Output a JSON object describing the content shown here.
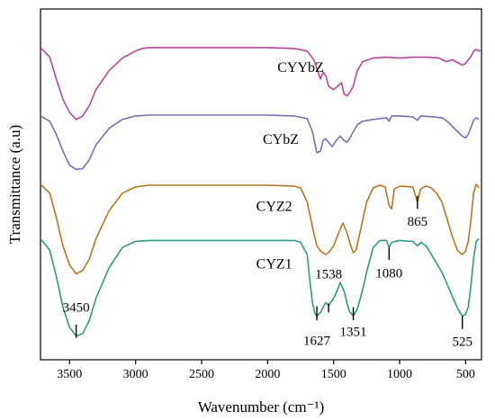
{
  "chart_data": {
    "type": "line",
    "xlabel": "Wavenumber (cm⁻¹)",
    "ylabel": "Transmittance (a.u)",
    "xlim": [
      3720,
      380
    ],
    "x_ticks": [
      3500,
      3000,
      2500,
      2000,
      1500,
      1000,
      500
    ],
    "x_tick_labels": [
      "3500",
      "3000",
      "2500",
      "2000",
      "1500",
      "1000",
      "500"
    ],
    "grid": false,
    "legend": "none",
    "series": [
      {
        "name": "CYYbZ",
        "color": "#b5479b",
        "points": [
          [
            3720,
            44
          ],
          [
            3650,
            55
          ],
          [
            3600,
            80
          ],
          [
            3550,
            103
          ],
          [
            3500,
            118
          ],
          [
            3450,
            126
          ],
          [
            3400,
            122
          ],
          [
            3350,
            110
          ],
          [
            3300,
            92
          ],
          [
            3200,
            70
          ],
          [
            3100,
            56
          ],
          [
            3000,
            48
          ],
          [
            2950,
            45
          ],
          [
            2900,
            44
          ],
          [
            2500,
            44
          ],
          [
            2000,
            44
          ],
          [
            1800,
            45
          ],
          [
            1700,
            48
          ],
          [
            1650,
            58
          ],
          [
            1627,
            68
          ],
          [
            1600,
            80
          ],
          [
            1580,
            72
          ],
          [
            1560,
            76
          ],
          [
            1538,
            88
          ],
          [
            1500,
            92
          ],
          [
            1470,
            88
          ],
          [
            1440,
            84
          ],
          [
            1420,
            97
          ],
          [
            1400,
            99
          ],
          [
            1380,
            96
          ],
          [
            1351,
            88
          ],
          [
            1320,
            70
          ],
          [
            1280,
            60
          ],
          [
            1200,
            56
          ],
          [
            1100,
            55
          ],
          [
            1000,
            56
          ],
          [
            900,
            55
          ],
          [
            800,
            55
          ],
          [
            700,
            56
          ],
          [
            650,
            60
          ],
          [
            600,
            58
          ],
          [
            550,
            62
          ],
          [
            525,
            64
          ],
          [
            500,
            62
          ],
          [
            480,
            58
          ],
          [
            460,
            54
          ],
          [
            440,
            48
          ],
          [
            420,
            46
          ],
          [
            400,
            48
          ],
          [
            390,
            47
          ]
        ]
      },
      {
        "name": "CYbZ",
        "color": "#7272b4",
        "points": [
          [
            3720,
            122
          ],
          [
            3650,
            128
          ],
          [
            3600,
            143
          ],
          [
            3550,
            162
          ],
          [
            3500,
            178
          ],
          [
            3450,
            183
          ],
          [
            3400,
            182
          ],
          [
            3350,
            172
          ],
          [
            3300,
            155
          ],
          [
            3200,
            136
          ],
          [
            3100,
            126
          ],
          [
            3000,
            122
          ],
          [
            2900,
            121
          ],
          [
            2500,
            121
          ],
          [
            2000,
            121
          ],
          [
            1800,
            122
          ],
          [
            1700,
            125
          ],
          [
            1660,
            140
          ],
          [
            1627,
            164
          ],
          [
            1600,
            162
          ],
          [
            1580,
            150
          ],
          [
            1560,
            148
          ],
          [
            1538,
            152
          ],
          [
            1510,
            157
          ],
          [
            1480,
            150
          ],
          [
            1450,
            145
          ],
          [
            1420,
            150
          ],
          [
            1400,
            152
          ],
          [
            1380,
            148
          ],
          [
            1351,
            140
          ],
          [
            1320,
            132
          ],
          [
            1280,
            128
          ],
          [
            1200,
            126
          ],
          [
            1100,
            124
          ],
          [
            1080,
            128
          ],
          [
            1060,
            122
          ],
          [
            1000,
            122
          ],
          [
            900,
            123
          ],
          [
            865,
            127
          ],
          [
            840,
            122
          ],
          [
            750,
            123
          ],
          [
            680,
            124
          ],
          [
            640,
            128
          ],
          [
            600,
            134
          ],
          [
            560,
            140
          ],
          [
            525,
            145
          ],
          [
            500,
            147
          ],
          [
            480,
            143
          ],
          [
            460,
            135
          ],
          [
            440,
            127
          ],
          [
            420,
            124
          ],
          [
            400,
            126
          ]
        ]
      },
      {
        "name": "CYZ2",
        "color": "#b5761f",
        "points": [
          [
            3720,
            200
          ],
          [
            3650,
            210
          ],
          [
            3600,
            238
          ],
          [
            3550,
            270
          ],
          [
            3500,
            292
          ],
          [
            3450,
            302
          ],
          [
            3400,
            298
          ],
          [
            3350,
            285
          ],
          [
            3300,
            262
          ],
          [
            3200,
            230
          ],
          [
            3100,
            210
          ],
          [
            3000,
            203
          ],
          [
            2900,
            201
          ],
          [
            2500,
            201
          ],
          [
            2000,
            201
          ],
          [
            1800,
            202
          ],
          [
            1750,
            204
          ],
          [
            1700,
            220
          ],
          [
            1650,
            256
          ],
          [
            1627,
            270
          ],
          [
            1600,
            276
          ],
          [
            1580,
            278
          ],
          [
            1560,
            280
          ],
          [
            1538,
            278
          ],
          [
            1500,
            270
          ],
          [
            1460,
            255
          ],
          [
            1430,
            244
          ],
          [
            1400,
            255
          ],
          [
            1370,
            270
          ],
          [
            1351,
            278
          ],
          [
            1330,
            275
          ],
          [
            1300,
            255
          ],
          [
            1250,
            220
          ],
          [
            1200,
            204
          ],
          [
            1150,
            201
          ],
          [
            1110,
            203
          ],
          [
            1080,
            224
          ],
          [
            1060,
            228
          ],
          [
            1040,
            205
          ],
          [
            1000,
            202
          ],
          [
            900,
            203
          ],
          [
            865,
            220
          ],
          [
            840,
            205
          ],
          [
            800,
            202
          ],
          [
            760,
            204
          ],
          [
            720,
            210
          ],
          [
            680,
            220
          ],
          [
            640,
            240
          ],
          [
            600,
            260
          ],
          [
            560,
            276
          ],
          [
            525,
            280
          ],
          [
            500,
            276
          ],
          [
            480,
            265
          ],
          [
            460,
            240
          ],
          [
            440,
            210
          ],
          [
            420,
            200
          ],
          [
            400,
            204
          ]
        ]
      },
      {
        "name": "CYZ1",
        "color": "#2e9c7c",
        "points": [
          [
            3720,
            262
          ],
          [
            3650,
            275
          ],
          [
            3600,
            305
          ],
          [
            3550,
            340
          ],
          [
            3500,
            363
          ],
          [
            3450,
            373
          ],
          [
            3400,
            370
          ],
          [
            3350,
            355
          ],
          [
            3300,
            330
          ],
          [
            3200,
            295
          ],
          [
            3100,
            272
          ],
          [
            3000,
            265
          ],
          [
            2900,
            264
          ],
          [
            2500,
            264
          ],
          [
            2000,
            264
          ],
          [
            1800,
            264
          ],
          [
            1750,
            266
          ],
          [
            1700,
            280
          ],
          [
            1680,
            310
          ],
          [
            1660,
            335
          ],
          [
            1640,
            348
          ],
          [
            1627,
            350
          ],
          [
            1600,
            346
          ],
          [
            1580,
            340
          ],
          [
            1560,
            335
          ],
          [
            1538,
            338
          ],
          [
            1500,
            330
          ],
          [
            1470,
            320
          ],
          [
            1450,
            312
          ],
          [
            1420,
            322
          ],
          [
            1400,
            335
          ],
          [
            1380,
            345
          ],
          [
            1351,
            350
          ],
          [
            1320,
            342
          ],
          [
            1280,
            320
          ],
          [
            1250,
            300
          ],
          [
            1200,
            272
          ],
          [
            1150,
            264
          ],
          [
            1100,
            264
          ],
          [
            1080,
            272
          ],
          [
            1060,
            266
          ],
          [
            1000,
            264
          ],
          [
            900,
            265
          ],
          [
            865,
            270
          ],
          [
            840,
            266
          ],
          [
            800,
            270
          ],
          [
            760,
            280
          ],
          [
            720,
            290
          ],
          [
            680,
            300
          ],
          [
            640,
            314
          ],
          [
            600,
            328
          ],
          [
            560,
            342
          ],
          [
            525,
            350
          ],
          [
            500,
            348
          ],
          [
            480,
            340
          ],
          [
            460,
            315
          ],
          [
            440,
            285
          ],
          [
            420,
            265
          ],
          [
            400,
            262
          ]
        ]
      }
    ],
    "series_label_positions": [
      {
        "text": "CYYbZ",
        "x": 1750,
        "y": 72
      },
      {
        "text": "CYbZ",
        "x": 1900,
        "y": 154
      },
      {
        "text": "CYZ2",
        "x": 1950,
        "y": 230
      },
      {
        "text": "CYZ1",
        "x": 1950,
        "y": 296
      }
    ],
    "annotations": [
      {
        "text": "3450",
        "x": 3450,
        "line_from": 375,
        "line_to": 360,
        "label_y": 345,
        "label_side": "above"
      },
      {
        "text": "1627",
        "x": 1627,
        "line_from": 339,
        "line_to": 355,
        "label_y": 383,
        "label_side": "below"
      },
      {
        "text": "1538",
        "x": 1538,
        "line_from": 346,
        "line_to": 336,
        "label_y": 307,
        "label_side": "above"
      },
      {
        "text": "1351",
        "x": 1351,
        "line_from": 340,
        "line_to": 355,
        "label_y": 373,
        "label_side": "below"
      },
      {
        "text": "1080",
        "x": 1080,
        "line_from": 286,
        "line_to": 272,
        "label_y": 306,
        "label_side": "below"
      },
      {
        "text": "865",
        "x": 865,
        "line_from": 213,
        "line_to": 228,
        "label_y": 247,
        "label_side": "below"
      },
      {
        "text": "525",
        "x": 525,
        "line_from": 350,
        "line_to": 365,
        "label_y": 384,
        "label_side": "below"
      }
    ]
  }
}
